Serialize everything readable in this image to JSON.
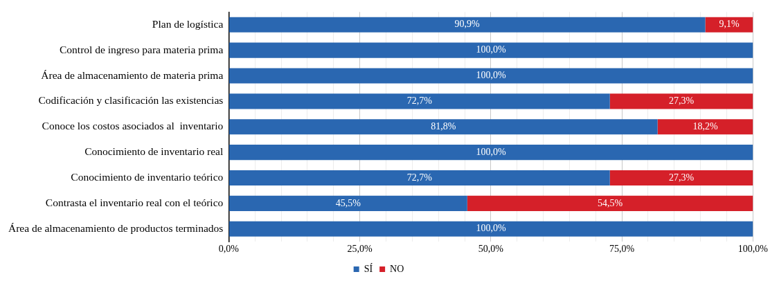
{
  "chart_data": {
    "type": "bar",
    "orientation": "horizontal",
    "stacked": true,
    "categories": [
      "Plan de logística",
      "Control de ingreso para materia prima",
      "Área de almacenamiento de materia prima",
      "Codificación y clasificación las existencias",
      "Conoce los costos asociados al  inventario",
      "Conocimiento de inventario real",
      "Conocimiento de inventario teórico",
      "Contrasta el inventario real con el teórico",
      "Área de almacenamiento de productos terminados"
    ],
    "series": [
      {
        "name": "SÍ",
        "color": "#2a67b1",
        "values": [
          90.9,
          100,
          100,
          72.7,
          81.8,
          100,
          72.7,
          45.5,
          100
        ],
        "value_labels": [
          "90,9%",
          "100,0%",
          "100,0%",
          "72,7%",
          "81,8%",
          "100,0%",
          "72,7%",
          "45,5%",
          "100,0%"
        ]
      },
      {
        "name": "NO",
        "color": "#d52029",
        "values": [
          9.1,
          0,
          0,
          27.3,
          18.2,
          0,
          27.3,
          54.5,
          0
        ],
        "value_labels": [
          "9,1%",
          null,
          null,
          "27,3%",
          "18,2%",
          null,
          "27,3%",
          "54,5%",
          null
        ]
      }
    ],
    "xlim": [
      0,
      100
    ],
    "xticks": [
      {
        "value": 0,
        "label": "0,0%"
      },
      {
        "value": 5,
        "label": null
      },
      {
        "value": 10,
        "label": null
      },
      {
        "value": 15,
        "label": null
      },
      {
        "value": 20,
        "label": null
      },
      {
        "value": 25,
        "label": "25,0%"
      },
      {
        "value": 30,
        "label": null
      },
      {
        "value": 35,
        "label": null
      },
      {
        "value": 40,
        "label": null
      },
      {
        "value": 45,
        "label": null
      },
      {
        "value": 50,
        "label": "50,0%"
      },
      {
        "value": 55,
        "label": null
      },
      {
        "value": 60,
        "label": null
      },
      {
        "value": 65,
        "label": null
      },
      {
        "value": 70,
        "label": null
      },
      {
        "value": 75,
        "label": "75,0%"
      },
      {
        "value": 80,
        "label": null
      },
      {
        "value": 85,
        "label": null
      },
      {
        "value": 90,
        "label": null
      },
      {
        "value": 95,
        "label": null
      },
      {
        "value": 100,
        "label": "100,0%"
      }
    ],
    "grid": "x",
    "legend": "bottom"
  }
}
